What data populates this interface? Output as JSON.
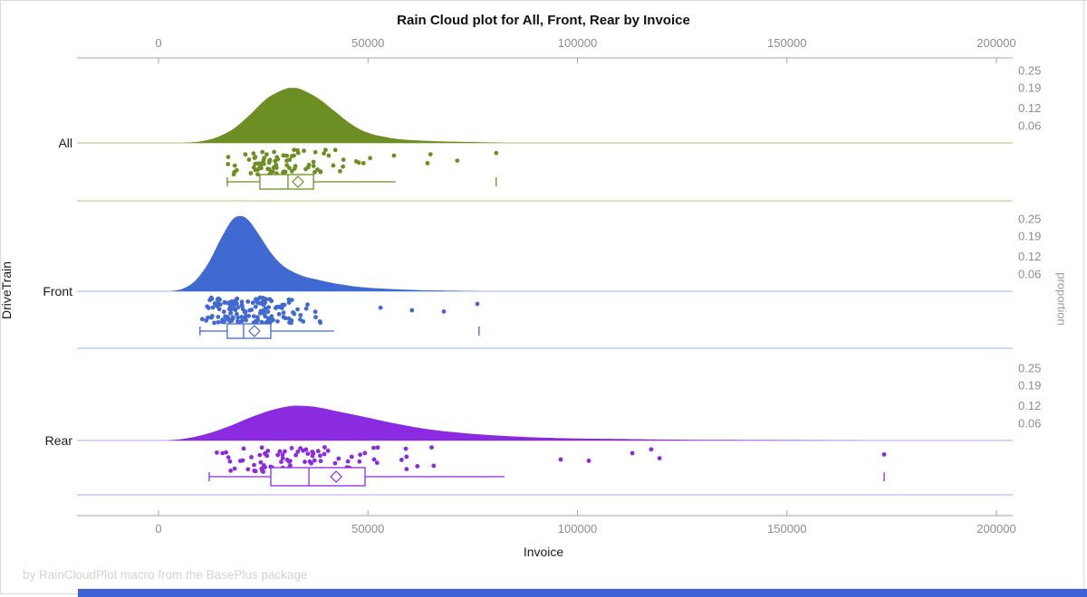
{
  "title": "Rain Cloud plot for All, Front, Rear by Invoice",
  "footnote": "by RainCloudPlot macro from the BasePlus package",
  "bottom_bar_color": "#3e63d6",
  "chart_data": {
    "type": "raincloud (half-violin density + jitter strip + box plot)",
    "title": "Rain Cloud plot for All, Front, Rear by Invoice",
    "x_axis": {
      "label": "Invoice",
      "tick_labels": [
        "0",
        "50000",
        "100000",
        "150000",
        "200000"
      ],
      "tick_values": [
        0,
        50000,
        100000,
        150000,
        200000
      ],
      "line_range": [
        -19500,
        204000
      ],
      "grid": false
    },
    "y_axis_left": {
      "label": "DriveTrain",
      "categories": [
        "All",
        "Front",
        "Rear"
      ]
    },
    "y_axis_right": {
      "label": "proportion",
      "tick_labels": [
        "0.25",
        "0.19",
        "0.12",
        "0.06"
      ],
      "tick_values": [
        0.25,
        0.19,
        0.12,
        0.06
      ]
    },
    "series": [
      {
        "name": "All",
        "color": "#6d8e23",
        "light_color": "#ccd8a2",
        "box": {
          "whisker_low": 16400,
          "q1": 24200,
          "median": 30900,
          "mean": 33300,
          "q3": 37000,
          "whisker_high": 56600,
          "far_outlier": 80600
        },
        "density": [
          [
            6000,
            0
          ],
          [
            10000,
            0.005
          ],
          [
            14000,
            0.02
          ],
          [
            18000,
            0.05
          ],
          [
            22000,
            0.1
          ],
          [
            26000,
            0.155
          ],
          [
            30000,
            0.185
          ],
          [
            32000,
            0.19
          ],
          [
            34000,
            0.185
          ],
          [
            38000,
            0.155
          ],
          [
            42000,
            0.11
          ],
          [
            46000,
            0.065
          ],
          [
            50000,
            0.035
          ],
          [
            55000,
            0.018
          ],
          [
            60000,
            0.01
          ],
          [
            66000,
            0.006
          ],
          [
            72000,
            0.004
          ],
          [
            78000,
            0.002
          ],
          [
            83000,
            0
          ]
        ],
        "strip_cluster": {
          "count": 85,
          "min": 15500,
          "max": 55000,
          "skew": 1.4,
          "seed": 1007
        },
        "detached_points": [
          [
            50500,
            0.35
          ],
          [
            56200,
            0.25
          ],
          [
            64200,
            0.55
          ],
          [
            64900,
            0.2
          ],
          [
            71300,
            0.45
          ],
          [
            80600,
            0.15
          ]
        ]
      },
      {
        "name": "Front",
        "color": "#4169d2",
        "light_color": "#bccdf0",
        "box": {
          "whisker_low": 9900,
          "q1": 16400,
          "median": 20300,
          "mean": 22900,
          "q3": 26800,
          "whisker_high": 41900,
          "far_outlier": 76500
        },
        "density": [
          [
            3000,
            0
          ],
          [
            6000,
            0.01
          ],
          [
            9000,
            0.04
          ],
          [
            12000,
            0.1
          ],
          [
            15000,
            0.185
          ],
          [
            17500,
            0.245
          ],
          [
            19500,
            0.26
          ],
          [
            21500,
            0.245
          ],
          [
            24000,
            0.195
          ],
          [
            27000,
            0.13
          ],
          [
            30000,
            0.085
          ],
          [
            34000,
            0.055
          ],
          [
            38000,
            0.04
          ],
          [
            43000,
            0.025
          ],
          [
            48000,
            0.015
          ],
          [
            55000,
            0.008
          ],
          [
            62000,
            0.004
          ],
          [
            70000,
            0.002
          ],
          [
            77000,
            0
          ]
        ],
        "strip_cluster": {
          "count": 155,
          "min": 9900,
          "max": 48000,
          "skew": 1.7,
          "seed": 2013
        },
        "detached_points": [
          [
            53000,
            0.4
          ],
          [
            60500,
            0.5
          ],
          [
            68100,
            0.55
          ],
          [
            76100,
            0.25
          ]
        ]
      },
      {
        "name": "Rear",
        "color": "#8a2be2",
        "light_color": "#d9bdf2",
        "box": {
          "whisker_low": 12100,
          "q1": 26800,
          "median": 35900,
          "mean": 42400,
          "q3": 49300,
          "whisker_high": 82600,
          "far_outlier": 173200
        },
        "density": [
          [
            2000,
            0
          ],
          [
            7000,
            0.008
          ],
          [
            12000,
            0.025
          ],
          [
            17000,
            0.05
          ],
          [
            22000,
            0.08
          ],
          [
            27000,
            0.105
          ],
          [
            31000,
            0.118
          ],
          [
            34000,
            0.12
          ],
          [
            38000,
            0.115
          ],
          [
            43000,
            0.1
          ],
          [
            49000,
            0.082
          ],
          [
            56000,
            0.06
          ],
          [
            63000,
            0.042
          ],
          [
            71000,
            0.028
          ],
          [
            80000,
            0.018
          ],
          [
            90000,
            0.011
          ],
          [
            100000,
            0.007
          ],
          [
            112000,
            0.005
          ],
          [
            122000,
            0.003
          ],
          [
            135000,
            0.002
          ],
          [
            155000,
            0.001
          ],
          [
            172000,
            0
          ]
        ],
        "strip_cluster": {
          "count": 90,
          "min": 12100,
          "max": 88000,
          "skew": 1.7,
          "seed": 3021
        },
        "detached_points": [
          [
            96000,
            0.5
          ],
          [
            102700,
            0.55
          ],
          [
            113100,
            0.25
          ],
          [
            117600,
            0.1
          ],
          [
            119600,
            0.45
          ],
          [
            173200,
            0.3
          ]
        ]
      }
    ],
    "footnote": "by RainCloudPlot macro from the BasePlus package"
  }
}
